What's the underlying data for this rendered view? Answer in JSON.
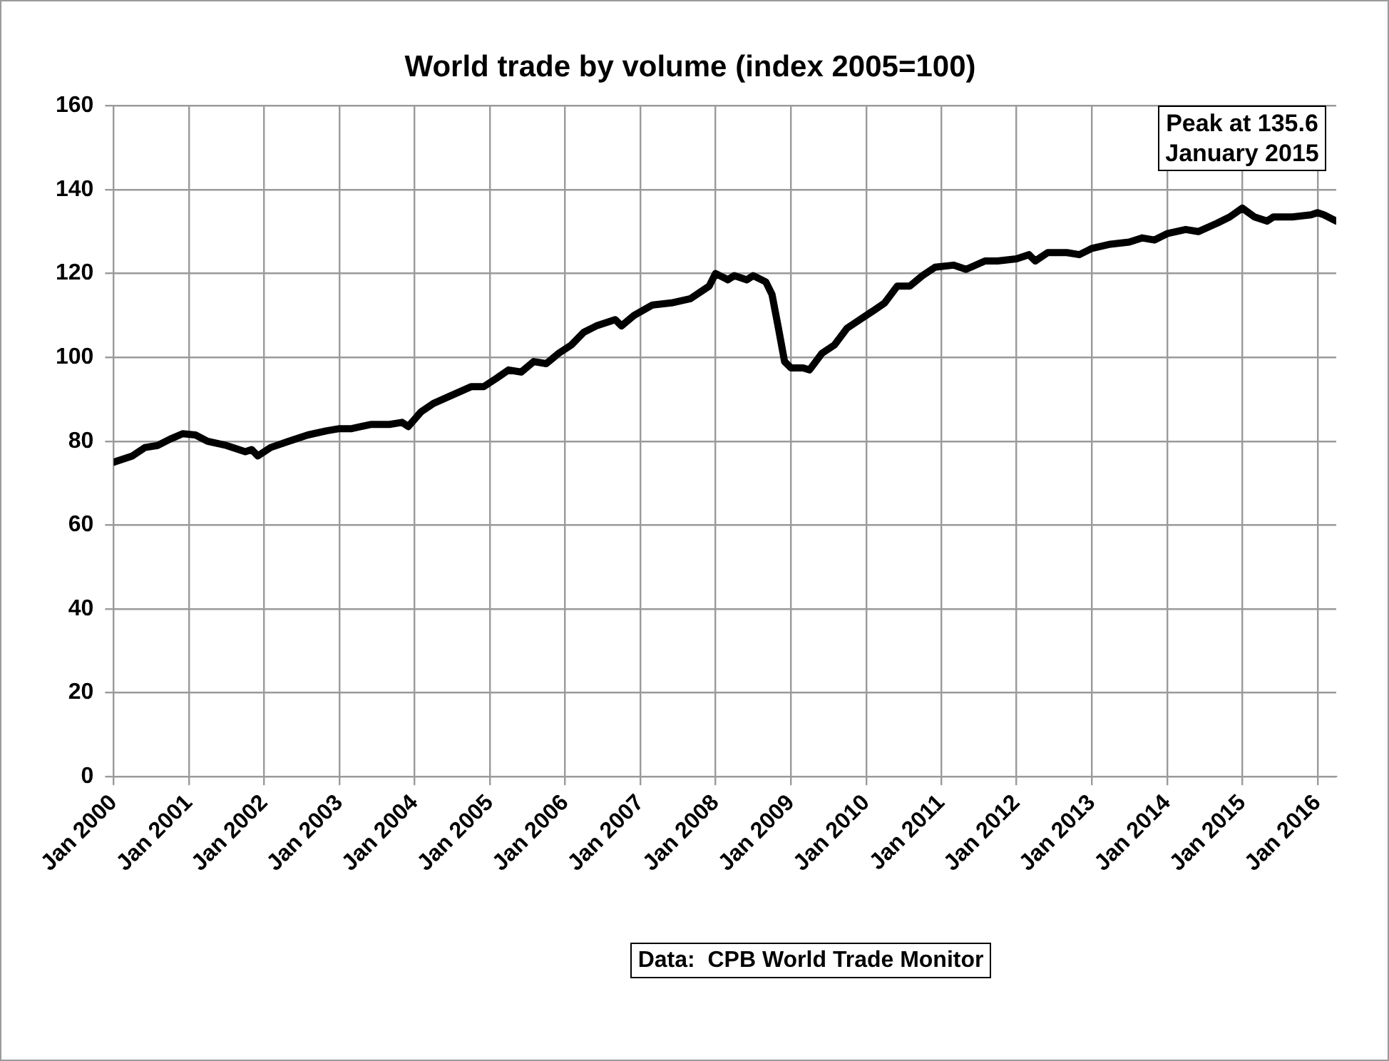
{
  "chart_data": {
    "type": "line",
    "title": "World trade by volume (index 2005=100)",
    "x": [
      "2000-01",
      "2000-04",
      "2000-06",
      "2000-08",
      "2000-10",
      "2000-12",
      "2001-02",
      "2001-04",
      "2001-07",
      "2001-10",
      "2001-11",
      "2001-12",
      "2002-02",
      "2002-05",
      "2002-08",
      "2002-11",
      "2003-01",
      "2003-03",
      "2003-06",
      "2003-09",
      "2003-11",
      "2003-12",
      "2004-02",
      "2004-04",
      "2004-07",
      "2004-10",
      "2004-12",
      "2005-02",
      "2005-04",
      "2005-06",
      "2005-08",
      "2005-10",
      "2005-12",
      "2006-02",
      "2006-04",
      "2006-06",
      "2006-09",
      "2006-10",
      "2006-12",
      "2007-03",
      "2007-06",
      "2007-09",
      "2007-12",
      "2008-01",
      "2008-03",
      "2008-04",
      "2008-06",
      "2008-07",
      "2008-09",
      "2008-10",
      "2008-11",
      "2008-12",
      "2009-01",
      "2009-03",
      "2009-04",
      "2009-06",
      "2009-08",
      "2009-10",
      "2009-12",
      "2010-02",
      "2010-04",
      "2010-06",
      "2010-08",
      "2010-10",
      "2010-12",
      "2011-03",
      "2011-05",
      "2011-08",
      "2011-10",
      "2012-01",
      "2012-03",
      "2012-04",
      "2012-06",
      "2012-09",
      "2012-11",
      "2013-01",
      "2013-04",
      "2013-07",
      "2013-09",
      "2013-11",
      "2014-01",
      "2014-04",
      "2014-06",
      "2014-09",
      "2014-11",
      "2015-01",
      "2015-03",
      "2015-05",
      "2015-06",
      "2015-09",
      "2015-12",
      "2016-01",
      "2016-02",
      "2016-04"
    ],
    "series": [
      {
        "color": "#000000",
        "values": [
          75,
          76.5,
          78.5,
          79,
          80.5,
          81.8,
          81.5,
          80,
          79,
          77.5,
          78,
          76.5,
          78.5,
          80,
          81.5,
          82.5,
          83,
          83,
          84,
          84,
          84.5,
          83.5,
          87,
          89,
          91,
          93,
          93,
          95,
          97,
          96.5,
          99,
          98.5,
          101,
          103,
          106,
          107.5,
          109,
          107.5,
          110,
          112.5,
          113,
          114,
          117,
          120,
          118.5,
          119.5,
          118.5,
          119.5,
          118,
          115,
          107,
          99,
          97.5,
          97.5,
          97,
          101,
          103,
          107,
          109,
          111,
          113,
          117,
          117,
          119.5,
          121.5,
          122,
          121,
          123,
          123,
          123.5,
          124.5,
          123,
          125,
          125,
          124.5,
          126,
          127,
          127.5,
          128.5,
          128,
          129.5,
          130.5,
          130,
          132,
          133.5,
          135.6,
          133.5,
          132.5,
          133.5,
          133.5,
          134,
          134.5,
          134,
          132.5
        ]
      }
    ],
    "xlim": [
      "2000-01",
      "2016-04"
    ],
    "xticks": [
      {
        "value": "2000-01",
        "label": "Jan 2000"
      },
      {
        "value": "2001-01",
        "label": "Jan 2001"
      },
      {
        "value": "2002-01",
        "label": "Jan 2002"
      },
      {
        "value": "2003-01",
        "label": "Jan 2003"
      },
      {
        "value": "2004-01",
        "label": "Jan 2004"
      },
      {
        "value": "2005-01",
        "label": "Jan 2005"
      },
      {
        "value": "2006-01",
        "label": "Jan 2006"
      },
      {
        "value": "2007-01",
        "label": "Jan 2007"
      },
      {
        "value": "2008-01",
        "label": "Jan 2008"
      },
      {
        "value": "2009-01",
        "label": "Jan 2009"
      },
      {
        "value": "2010-01",
        "label": "Jan 2010"
      },
      {
        "value": "2011-01",
        "label": "Jan 2011"
      },
      {
        "value": "2012-01",
        "label": "Jan 2012"
      },
      {
        "value": "2013-01",
        "label": "Jan 2013"
      },
      {
        "value": "2014-01",
        "label": "Jan 2014"
      },
      {
        "value": "2015-01",
        "label": "Jan 2015"
      },
      {
        "value": "2016-01",
        "label": "Jan 2016"
      }
    ],
    "ylim": [
      0,
      160
    ],
    "yticks": [
      0,
      20,
      40,
      60,
      80,
      100,
      120,
      140,
      160
    ],
    "grid": true,
    "legend": false,
    "marker": "none",
    "line_style": "solid",
    "annotations": [
      {
        "text": "Peak at 135.6\nJanuary 2015",
        "x": "2015-01",
        "y": 135.6
      },
      "Data:  CPB World Trade Monitor"
    ]
  }
}
